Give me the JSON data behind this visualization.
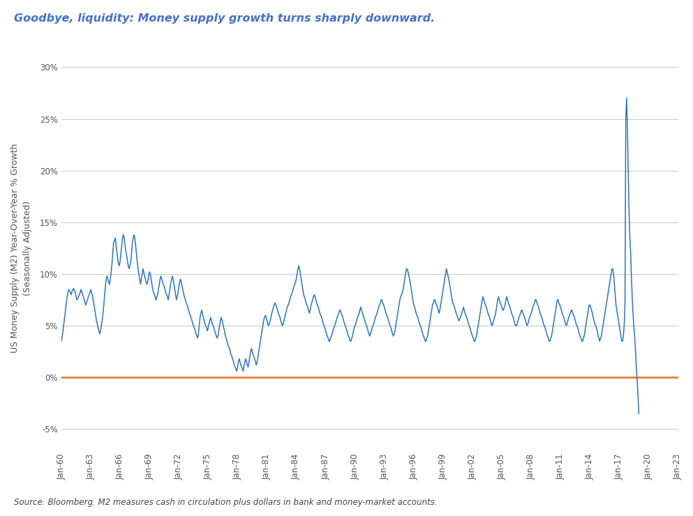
{
  "title": "Goodbye, liquidity: Money supply growth turns sharply downward.",
  "ylabel": "US Money Supply (M2) Year-Over-Year % Growth\n(Seasonally Adjusted)",
  "source_text": "Source: Bloomberg. M2 measures cash in circulation plus dollars in bank and money-market accounts.",
  "title_color": "#4472C4",
  "line_color": "#2E75B6",
  "zero_line_color": "#ED7D31",
  "background_color": "#FFFFFF",
  "ylim": [
    -7,
    32
  ],
  "yticks": [
    -5,
    0,
    5,
    10,
    15,
    20,
    25,
    30
  ],
  "xtick_labels": [
    "Jan-60",
    "Jan-63",
    "Jan-66",
    "Jan-69",
    "Jan-72",
    "Jan-75",
    "Jan-78",
    "Jan-81",
    "Jan-84",
    "Jan-87",
    "Jan-90",
    "Jan-93",
    "Jan-96",
    "Jan-99",
    "Jan-02",
    "Jan-05",
    "Jan-08",
    "Jan-11",
    "Jan-14",
    "Jan-17",
    "Jan-20",
    "Jan-23"
  ],
  "m2_yoy": [
    3.5,
    4.0,
    4.5,
    5.2,
    5.8,
    6.5,
    7.2,
    7.8,
    8.2,
    8.5,
    8.4,
    8.2,
    8.0,
    8.3,
    8.5,
    8.6,
    8.4,
    8.2,
    7.8,
    7.5,
    7.6,
    7.8,
    8.0,
    8.2,
    8.5,
    8.3,
    8.0,
    7.8,
    7.5,
    7.2,
    7.0,
    7.3,
    7.5,
    7.8,
    8.0,
    8.2,
    8.5,
    8.2,
    8.0,
    7.5,
    7.0,
    6.5,
    6.0,
    5.5,
    5.2,
    4.8,
    4.5,
    4.2,
    4.5,
    5.0,
    5.5,
    6.2,
    7.0,
    8.0,
    8.8,
    9.5,
    9.8,
    9.5,
    9.2,
    9.0,
    9.5,
    10.2,
    11.0,
    12.0,
    13.0,
    13.2,
    13.5,
    12.8,
    12.2,
    11.5,
    11.0,
    10.8,
    11.2,
    12.0,
    12.8,
    13.5,
    13.8,
    13.5,
    12.8,
    12.2,
    11.8,
    11.2,
    10.8,
    10.5,
    10.8,
    11.2,
    12.0,
    13.0,
    13.5,
    13.8,
    13.5,
    12.8,
    12.0,
    11.2,
    10.5,
    10.0,
    9.5,
    9.0,
    9.5,
    10.0,
    10.5,
    10.2,
    9.8,
    9.5,
    9.2,
    9.0,
    9.3,
    9.8,
    10.2,
    10.0,
    9.5,
    9.0,
    8.5,
    8.2,
    8.0,
    7.8,
    7.5,
    7.8,
    8.0,
    8.5,
    9.0,
    9.5,
    9.8,
    9.5,
    9.2,
    9.0,
    8.8,
    8.5,
    8.2,
    8.0,
    7.8,
    7.5,
    8.0,
    8.5,
    9.0,
    9.5,
    9.8,
    9.5,
    9.0,
    8.5,
    8.0,
    7.5,
    7.8,
    8.2,
    8.8,
    9.2,
    9.5,
    9.2,
    8.8,
    8.5,
    8.0,
    7.8,
    7.5,
    7.2,
    7.0,
    6.8,
    6.5,
    6.2,
    6.0,
    5.8,
    5.5,
    5.2,
    5.0,
    4.8,
    4.5,
    4.2,
    4.0,
    3.8,
    4.2,
    5.0,
    5.8,
    6.2,
    6.5,
    6.2,
    5.8,
    5.5,
    5.2,
    5.0,
    4.8,
    4.5,
    4.8,
    5.2,
    5.5,
    5.8,
    5.5,
    5.2,
    5.0,
    4.8,
    4.5,
    4.2,
    4.0,
    3.8,
    4.0,
    4.5,
    5.0,
    5.5,
    5.8,
    5.5,
    5.2,
    4.8,
    4.5,
    4.0,
    3.8,
    3.5,
    3.2,
    3.0,
    2.8,
    2.5,
    2.2,
    2.0,
    1.8,
    1.5,
    1.2,
    1.0,
    0.8,
    0.6,
    1.0,
    1.5,
    1.8,
    1.5,
    1.2,
    1.0,
    0.8,
    0.6,
    1.2,
    1.5,
    1.8,
    1.5,
    1.2,
    1.0,
    1.5,
    2.0,
    2.5,
    2.8,
    2.5,
    2.2,
    2.0,
    1.8,
    1.5,
    1.2,
    1.5,
    2.0,
    2.5,
    3.0,
    3.5,
    4.0,
    4.5,
    5.0,
    5.5,
    5.8,
    6.0,
    5.8,
    5.5,
    5.2,
    5.0,
    5.2,
    5.5,
    5.8,
    6.2,
    6.5,
    6.8,
    7.0,
    7.2,
    7.0,
    6.8,
    6.5,
    6.2,
    6.0,
    5.8,
    5.5,
    5.2,
    5.0,
    5.2,
    5.5,
    5.8,
    6.2,
    6.5,
    6.8,
    7.0,
    7.2,
    7.5,
    7.8,
    8.0,
    8.2,
    8.5,
    8.8,
    9.0,
    9.2,
    9.5,
    10.0,
    10.5,
    10.8,
    10.5,
    10.0,
    9.5,
    9.0,
    8.5,
    8.0,
    7.8,
    7.5,
    7.2,
    7.0,
    6.8,
    6.5,
    6.2,
    6.5,
    7.0,
    7.2,
    7.5,
    7.8,
    8.0,
    7.8,
    7.5,
    7.2,
    7.0,
    6.8,
    6.5,
    6.2,
    6.0,
    5.8,
    5.5,
    5.2,
    5.0,
    4.8,
    4.5,
    4.2,
    4.0,
    3.8,
    3.5,
    3.5,
    3.8,
    4.0,
    4.2,
    4.5,
    4.8,
    5.0,
    5.2,
    5.5,
    5.8,
    6.0,
    6.2,
    6.5,
    6.5,
    6.2,
    6.0,
    5.8,
    5.5,
    5.2,
    5.0,
    4.8,
    4.5,
    4.2,
    4.0,
    3.8,
    3.5,
    3.5,
    3.8,
    4.0,
    4.5,
    4.8,
    5.0,
    5.2,
    5.5,
    5.8,
    6.0,
    6.2,
    6.5,
    6.8,
    6.5,
    6.2,
    6.0,
    5.8,
    5.5,
    5.2,
    5.0,
    4.8,
    4.5,
    4.2,
    4.0,
    4.2,
    4.5,
    4.8,
    5.0,
    5.2,
    5.5,
    5.8,
    6.0,
    6.2,
    6.5,
    6.8,
    7.0,
    7.2,
    7.5,
    7.5,
    7.2,
    7.0,
    6.8,
    6.5,
    6.2,
    6.0,
    5.8,
    5.5,
    5.2,
    5.0,
    4.8,
    4.5,
    4.2,
    4.0,
    4.2,
    4.5,
    5.0,
    5.5,
    6.0,
    6.5,
    7.0,
    7.5,
    7.8,
    8.0,
    8.2,
    8.5,
    9.0,
    9.5,
    10.0,
    10.5,
    10.5,
    10.2,
    9.8,
    9.5,
    9.0,
    8.5,
    8.0,
    7.5,
    7.0,
    6.8,
    6.5,
    6.2,
    6.0,
    5.8,
    5.5,
    5.2,
    5.0,
    4.8,
    4.5,
    4.2,
    4.0,
    3.8,
    3.5,
    3.5,
    3.8,
    4.0,
    4.5,
    5.0,
    5.5,
    6.0,
    6.5,
    7.0,
    7.2,
    7.5,
    7.5,
    7.2,
    7.0,
    6.8,
    6.5,
    6.2,
    6.5,
    7.0,
    7.5,
    8.0,
    8.5,
    9.0,
    9.5,
    10.0,
    10.5,
    10.2,
    9.8,
    9.5,
    9.0,
    8.5,
    8.0,
    7.5,
    7.2,
    7.0,
    6.8,
    6.5,
    6.2,
    6.0,
    5.8,
    5.5,
    5.5,
    5.8,
    6.0,
    6.2,
    6.5,
    6.8,
    6.5,
    6.2,
    6.0,
    5.8,
    5.5,
    5.2,
    5.0,
    4.8,
    4.5,
    4.2,
    4.0,
    3.8,
    3.5,
    3.5,
    3.8,
    4.0,
    4.5,
    5.0,
    5.5,
    6.0,
    6.5,
    7.0,
    7.5,
    7.8,
    7.5,
    7.2,
    7.0,
    6.8,
    6.5,
    6.2,
    6.0,
    5.8,
    5.5,
    5.2,
    5.0,
    5.2,
    5.5,
    5.8,
    6.0,
    6.5,
    7.0,
    7.5,
    7.8,
    7.5,
    7.2,
    7.0,
    6.8,
    6.5,
    6.5,
    6.8,
    7.0,
    7.5,
    7.8,
    7.5,
    7.2,
    7.0,
    6.8,
    6.5,
    6.2,
    6.0,
    5.8,
    5.5,
    5.2,
    5.0,
    5.0,
    5.2,
    5.5,
    5.8,
    6.0,
    6.2,
    6.5,
    6.5,
    6.2,
    6.0,
    5.8,
    5.5,
    5.2,
    5.0,
    5.2,
    5.5,
    5.8,
    6.0,
    6.2,
    6.5,
    6.8,
    7.0,
    7.2,
    7.5,
    7.5,
    7.2,
    7.0,
    6.8,
    6.5,
    6.2,
    6.0,
    5.8,
    5.5,
    5.2,
    5.0,
    4.8,
    4.5,
    4.2,
    4.0,
    3.8,
    3.5,
    3.5,
    3.8,
    4.0,
    4.5,
    5.0,
    5.5,
    6.0,
    6.5,
    7.0,
    7.5,
    7.5,
    7.2,
    7.0,
    6.8,
    6.5,
    6.2,
    6.0,
    5.8,
    5.5,
    5.2,
    5.0,
    5.2,
    5.5,
    5.8,
    6.0,
    6.2,
    6.5,
    6.5,
    6.2,
    6.0,
    5.8,
    5.5,
    5.2,
    5.0,
    4.8,
    4.5,
    4.2,
    4.0,
    3.8,
    3.5,
    3.5,
    3.8,
    4.0,
    4.5,
    5.0,
    5.5,
    6.0,
    6.5,
    7.0,
    7.0,
    6.8,
    6.5,
    6.2,
    5.8,
    5.5,
    5.2,
    5.0,
    4.8,
    4.5,
    4.0,
    3.8,
    3.5,
    3.8,
    4.0,
    4.5,
    5.0,
    5.5,
    6.0,
    6.5,
    7.0,
    7.5,
    8.0,
    8.5,
    9.0,
    9.5,
    10.0,
    10.5,
    10.5,
    10.0,
    9.0,
    8.0,
    7.0,
    6.5,
    6.0,
    5.5,
    5.0,
    4.5,
    4.0,
    3.5,
    3.5,
    4.0,
    5.0,
    7.0,
    25.0,
    27.0,
    24.0,
    20.0,
    16.0,
    13.5,
    12.0,
    9.5,
    7.5,
    6.0,
    4.8,
    3.8,
    2.5,
    0.8,
    -0.3,
    -1.8,
    -3.5
  ]
}
